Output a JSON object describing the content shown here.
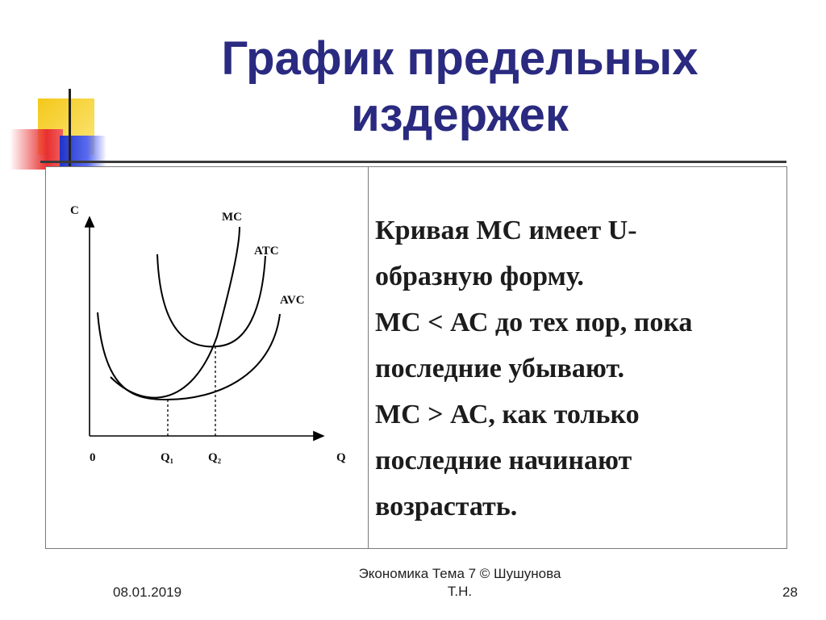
{
  "title": {
    "line1": "График предельных",
    "line2": "издержек"
  },
  "diagram": {
    "y_axis_label": "C",
    "x_axis_label": "Q",
    "origin_label": "0",
    "q1_label": "Q₁",
    "q2_label": "Q₂",
    "curves": [
      {
        "name": "MC",
        "color": "#000000"
      },
      {
        "name": "ATC",
        "color": "#000000"
      },
      {
        "name": "AVC",
        "color": "#000000"
      }
    ]
  },
  "text": {
    "lines": [
      "Кривая МС имеет U-",
      "образную форму.",
      "МС < АС до тех пор, пока",
      "последние убывают.",
      "МС  > АС, как только",
      "последние начинают",
      "возрастать."
    ]
  },
  "footer": {
    "date": "08.01.2019",
    "center_line1": "Экономика Тема 7 © Шушунова",
    "center_line2": "Т.Н.",
    "page": "28"
  },
  "colors": {
    "title": "#2a2a80",
    "deco_yellow": "#f7d21e",
    "deco_red": "#e83030",
    "deco_blue": "#2c3ed8"
  }
}
